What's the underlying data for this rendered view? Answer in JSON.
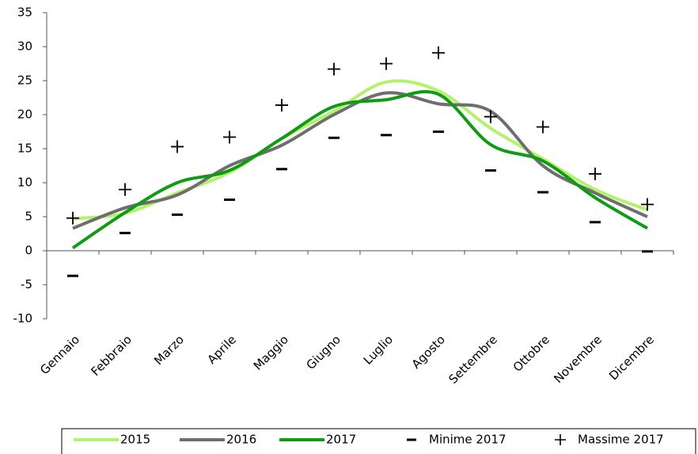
{
  "chart_data": {
    "type": "line",
    "categories": [
      "Gennaio",
      "Febbraio",
      "Marzo",
      "Aprile",
      "Maggio",
      "Giugno",
      "Luglio",
      "Agosto",
      "Settembre",
      "Ottobre",
      "Novembre",
      "Dicembre"
    ],
    "series": [
      {
        "name": "2015",
        "color": "#b3f26b",
        "style": "line",
        "values": [
          4.7,
          5.5,
          8.5,
          11.5,
          16.5,
          20.5,
          24.8,
          23.5,
          18,
          13.5,
          9,
          6
        ]
      },
      {
        "name": "2016",
        "color": "#6e6e6e",
        "style": "line",
        "values": [
          3.3,
          6.3,
          8.2,
          12.5,
          15.5,
          20,
          23.2,
          21.6,
          20.5,
          12.5,
          8.5,
          5
        ]
      },
      {
        "name": "2017",
        "color": "#0f9b14",
        "style": "line",
        "values": [
          0.4,
          5.6,
          10,
          11.8,
          16.5,
          21.2,
          22.2,
          23,
          15.6,
          13.2,
          7.8,
          3.3
        ]
      },
      {
        "name": "Minime 2017",
        "color": "#000000",
        "style": "dash",
        "values": [
          -3.7,
          2.6,
          5.3,
          7.5,
          12,
          16.6,
          17,
          17.5,
          11.8,
          8.6,
          4.2,
          -0.1
        ]
      },
      {
        "name": "Massime 2017",
        "color": "#000000",
        "style": "plus",
        "values": [
          4.8,
          9,
          15.3,
          16.7,
          21.4,
          26.7,
          27.5,
          29.1,
          19.7,
          18.2,
          11.3,
          6.8
        ]
      }
    ],
    "ylim": [
      -10,
      35
    ],
    "yticks": [
      -10,
      -5,
      0,
      5,
      10,
      15,
      20,
      25,
      30,
      35
    ],
    "grid": false,
    "legend": "bottom"
  }
}
